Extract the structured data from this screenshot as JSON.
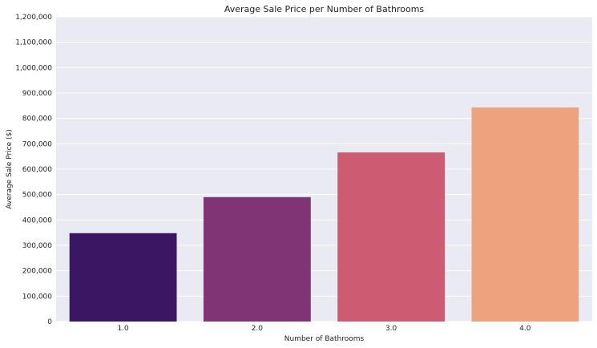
{
  "chart_data": {
    "type": "bar",
    "title": "Average Sale Price per Number of Bathrooms",
    "xlabel": "Number of Bathrooms",
    "ylabel": "Average Sale Price ($)",
    "categories": [
      "1.0",
      "2.0",
      "3.0",
      "4.0"
    ],
    "values": [
      348000,
      490000,
      666000,
      843000
    ],
    "ylim": [
      0,
      1200000
    ],
    "yticks": [
      0,
      100000,
      200000,
      300000,
      400000,
      500000,
      600000,
      700000,
      800000,
      900000,
      1000000,
      1100000,
      1200000
    ],
    "ytick_labels": [
      "0",
      "100,000",
      "200,000",
      "300,000",
      "400,000",
      "500,000",
      "600,000",
      "700,000",
      "800,000",
      "900,000",
      "1,000,000",
      "1,100,000",
      "1,200,000"
    ],
    "grid": true,
    "legend": false,
    "colors": [
      "#3b1763",
      "#803476",
      "#cd5c73",
      "#eda47e"
    ],
    "background": "#eaeaf2"
  }
}
